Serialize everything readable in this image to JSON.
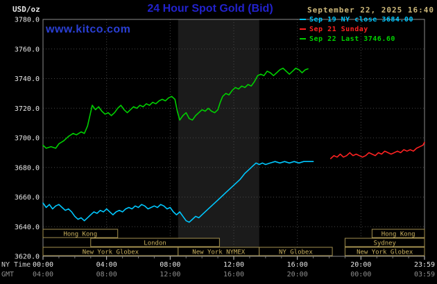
{
  "header": {
    "units": "USD/oz",
    "title": "24 Hour Spot Gold (Bid)",
    "datetime": "September 22, 2025 16:40",
    "watermark": "www.kitco.com"
  },
  "legend": [
    {
      "label": "Sep 19 NY close 3684.00",
      "color": "#00c8ff"
    },
    {
      "label": "Sep 21 Sunday",
      "color": "#ff2222"
    },
    {
      "label": "Sep 22 Last 3746.60",
      "color": "#00d000"
    }
  ],
  "colors": {
    "background": "#000000",
    "title_blue": "#2222cc",
    "watermark_blue": "#2a3fd4",
    "date_tan": "#cdb87a",
    "axis_text": "#e8e8e8",
    "gmt_text": "#8f8f8f",
    "ny_time_text": "#cfcfcf",
    "grid": "#474747",
    "border": "#8c8c8c",
    "shade": "#1b1b1b",
    "session_border": "#a3914f",
    "session_text": "#c9b05e",
    "cyan": "#00c8ff",
    "red": "#ff2222",
    "green": "#00d000"
  },
  "chart_data": {
    "type": "line",
    "title": "24 Hour Spot Gold (Bid)",
    "ylabel": "USD/oz",
    "ylim": [
      3620,
      3780
    ],
    "ytick_step": 20,
    "xlim_hours": [
      0,
      24
    ],
    "grid": true,
    "legend_position": "top-right",
    "nymex_shade_hours": [
      8.5,
      13.6
    ],
    "x_axis": {
      "ny_label": "NY Time",
      "gmt_label": "GMT",
      "tick_hours": [
        0,
        4,
        8,
        12,
        16,
        20,
        24
      ],
      "ny_ticks": [
        "00:00",
        "04:00",
        "08:00",
        "12:00",
        "16:00",
        "20:00",
        "23:59"
      ],
      "gmt_ticks": [
        "04:00",
        "08:00",
        "12:00",
        "16:00",
        "20:00",
        "00:00",
        "03:59"
      ]
    },
    "series": [
      {
        "name": "Sep 19 NY close",
        "close_value": 3684.0,
        "color": "#00c8ff",
        "points": [
          [
            0,
            3656
          ],
          [
            0.2,
            3653
          ],
          [
            0.4,
            3655
          ],
          [
            0.6,
            3652
          ],
          [
            0.8,
            3654
          ],
          [
            1,
            3655
          ],
          [
            1.2,
            3653
          ],
          [
            1.4,
            3651
          ],
          [
            1.6,
            3652
          ],
          [
            1.8,
            3650
          ],
          [
            2,
            3647
          ],
          [
            2.2,
            3645
          ],
          [
            2.4,
            3646
          ],
          [
            2.6,
            3644
          ],
          [
            2.8,
            3646
          ],
          [
            3,
            3648
          ],
          [
            3.2,
            3650
          ],
          [
            3.4,
            3649
          ],
          [
            3.6,
            3651
          ],
          [
            3.8,
            3650
          ],
          [
            4,
            3652
          ],
          [
            4.2,
            3650
          ],
          [
            4.4,
            3648
          ],
          [
            4.6,
            3650
          ],
          [
            4.8,
            3651
          ],
          [
            5,
            3650
          ],
          [
            5.2,
            3652
          ],
          [
            5.4,
            3653
          ],
          [
            5.6,
            3652
          ],
          [
            5.8,
            3654
          ],
          [
            6,
            3653
          ],
          [
            6.2,
            3655
          ],
          [
            6.4,
            3654
          ],
          [
            6.6,
            3652
          ],
          [
            6.8,
            3653
          ],
          [
            7,
            3654
          ],
          [
            7.2,
            3653
          ],
          [
            7.4,
            3655
          ],
          [
            7.6,
            3654
          ],
          [
            7.8,
            3652
          ],
          [
            8,
            3653
          ],
          [
            8.2,
            3650
          ],
          [
            8.4,
            3648
          ],
          [
            8.6,
            3650
          ],
          [
            8.8,
            3647
          ],
          [
            9,
            3644
          ],
          [
            9.2,
            3643
          ],
          [
            9.4,
            3645
          ],
          [
            9.6,
            3647
          ],
          [
            9.8,
            3646
          ],
          [
            10,
            3648
          ],
          [
            10.3,
            3651
          ],
          [
            10.6,
            3654
          ],
          [
            10.9,
            3657
          ],
          [
            11.2,
            3660
          ],
          [
            11.5,
            3663
          ],
          [
            11.8,
            3666
          ],
          [
            12.1,
            3669
          ],
          [
            12.4,
            3672
          ],
          [
            12.7,
            3676
          ],
          [
            13,
            3679
          ],
          [
            13.2,
            3681
          ],
          [
            13.4,
            3683
          ],
          [
            13.6,
            3682
          ],
          [
            13.8,
            3683
          ],
          [
            14,
            3682
          ],
          [
            14.3,
            3683
          ],
          [
            14.6,
            3684
          ],
          [
            14.9,
            3683
          ],
          [
            15.2,
            3684
          ],
          [
            15.5,
            3683
          ],
          [
            15.8,
            3684
          ],
          [
            16.1,
            3683
          ],
          [
            16.4,
            3684
          ],
          [
            16.7,
            3684
          ],
          [
            17,
            3684
          ]
        ]
      },
      {
        "name": "Sep 21 Sunday",
        "color": "#ff2222",
        "points": [
          [
            18.1,
            3686
          ],
          [
            18.3,
            3688
          ],
          [
            18.5,
            3687
          ],
          [
            18.7,
            3689
          ],
          [
            18.9,
            3687
          ],
          [
            19.1,
            3688
          ],
          [
            19.3,
            3690
          ],
          [
            19.5,
            3688
          ],
          [
            19.7,
            3689
          ],
          [
            19.9,
            3688
          ],
          [
            20.1,
            3687
          ],
          [
            20.3,
            3688
          ],
          [
            20.5,
            3690
          ],
          [
            20.7,
            3689
          ],
          [
            20.9,
            3688
          ],
          [
            21.1,
            3690
          ],
          [
            21.3,
            3689
          ],
          [
            21.5,
            3691
          ],
          [
            21.7,
            3690
          ],
          [
            21.9,
            3689
          ],
          [
            22.1,
            3690
          ],
          [
            22.3,
            3691
          ],
          [
            22.5,
            3690
          ],
          [
            22.7,
            3692
          ],
          [
            22.9,
            3691
          ],
          [
            23.1,
            3692
          ],
          [
            23.3,
            3691
          ],
          [
            23.5,
            3693
          ],
          [
            23.7,
            3694
          ],
          [
            23.9,
            3695
          ],
          [
            24,
            3697
          ]
        ]
      },
      {
        "name": "Sep 22 Last",
        "last_value": 3746.6,
        "color": "#00d000",
        "points": [
          [
            0,
            3695
          ],
          [
            0.2,
            3693
          ],
          [
            0.5,
            3694
          ],
          [
            0.8,
            3693
          ],
          [
            1,
            3696
          ],
          [
            1.3,
            3698
          ],
          [
            1.6,
            3701
          ],
          [
            1.9,
            3703
          ],
          [
            2.1,
            3702
          ],
          [
            2.4,
            3704
          ],
          [
            2.6,
            3703
          ],
          [
            2.8,
            3708
          ],
          [
            2.95,
            3715
          ],
          [
            3.1,
            3722
          ],
          [
            3.3,
            3719
          ],
          [
            3.5,
            3721
          ],
          [
            3.7,
            3718
          ],
          [
            3.9,
            3716
          ],
          [
            4.1,
            3717
          ],
          [
            4.3,
            3715
          ],
          [
            4.5,
            3717
          ],
          [
            4.7,
            3720
          ],
          [
            4.9,
            3722
          ],
          [
            5.1,
            3719
          ],
          [
            5.3,
            3717
          ],
          [
            5.5,
            3719
          ],
          [
            5.7,
            3721
          ],
          [
            5.9,
            3720
          ],
          [
            6.1,
            3722
          ],
          [
            6.3,
            3721
          ],
          [
            6.5,
            3723
          ],
          [
            6.7,
            3722
          ],
          [
            6.9,
            3724
          ],
          [
            7.1,
            3723
          ],
          [
            7.3,
            3725
          ],
          [
            7.5,
            3726
          ],
          [
            7.7,
            3725
          ],
          [
            7.9,
            3727
          ],
          [
            8.1,
            3728
          ],
          [
            8.3,
            3726
          ],
          [
            8.45,
            3718
          ],
          [
            8.6,
            3712
          ],
          [
            8.8,
            3715
          ],
          [
            9,
            3717
          ],
          [
            9.2,
            3713
          ],
          [
            9.4,
            3712
          ],
          [
            9.6,
            3715
          ],
          [
            9.8,
            3717
          ],
          [
            10,
            3719
          ],
          [
            10.2,
            3718
          ],
          [
            10.4,
            3720
          ],
          [
            10.6,
            3718
          ],
          [
            10.8,
            3717
          ],
          [
            11,
            3719
          ],
          [
            11.15,
            3724
          ],
          [
            11.3,
            3728
          ],
          [
            11.5,
            3730
          ],
          [
            11.7,
            3729
          ],
          [
            11.9,
            3732
          ],
          [
            12.1,
            3734
          ],
          [
            12.3,
            3733
          ],
          [
            12.5,
            3735
          ],
          [
            12.7,
            3734
          ],
          [
            12.9,
            3736
          ],
          [
            13.1,
            3735
          ],
          [
            13.3,
            3738
          ],
          [
            13.5,
            3742
          ],
          [
            13.7,
            3743
          ],
          [
            13.9,
            3742
          ],
          [
            14.1,
            3745
          ],
          [
            14.3,
            3744
          ],
          [
            14.5,
            3742
          ],
          [
            14.7,
            3744
          ],
          [
            14.9,
            3746
          ],
          [
            15.1,
            3747
          ],
          [
            15.3,
            3745
          ],
          [
            15.5,
            3743
          ],
          [
            15.7,
            3745
          ],
          [
            15.9,
            3747
          ],
          [
            16.1,
            3746
          ],
          [
            16.3,
            3744
          ],
          [
            16.5,
            3746
          ],
          [
            16.67,
            3746.6
          ]
        ]
      }
    ],
    "sessions": [
      {
        "row": 0,
        "label": "Hong Kong",
        "start": 0,
        "end": 4.7
      },
      {
        "row": 0,
        "label": "Hong Kong",
        "start": 20.7,
        "end": 24
      },
      {
        "row": 1,
        "label": "London",
        "start": 3,
        "end": 11.1
      },
      {
        "row": 1,
        "label": "Sydney",
        "start": 19,
        "end": 24
      },
      {
        "row": 2,
        "label": "New York Globex",
        "start": 0,
        "end": 8.5
      },
      {
        "row": 2,
        "label": "New York NYMEX",
        "start": 8.5,
        "end": 13.6
      },
      {
        "row": 2,
        "label": "NY Globex",
        "start": 13.6,
        "end": 18.2
      },
      {
        "row": 2,
        "label": "New York Globex",
        "start": 19,
        "end": 24
      }
    ]
  }
}
